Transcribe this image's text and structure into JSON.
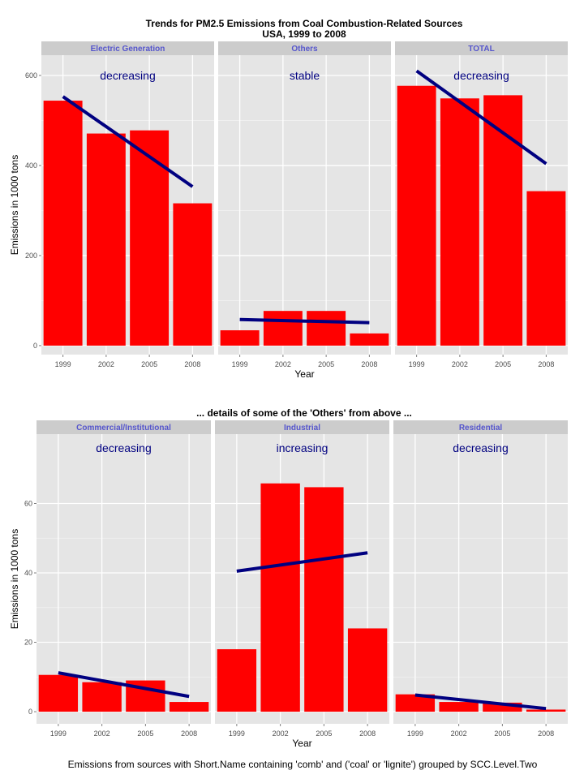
{
  "caption": "Emissions from sources with Short.Name containing 'comb' and ('coal' or 'lignite') grouped by SCC.Level.Two",
  "colors": {
    "bar": "#ff0000",
    "trend": "#000080",
    "panel_bg": "#e5e5e5",
    "strip_bg": "#cccccc",
    "strip_text": "#5555cc",
    "grid": "#ffffff"
  },
  "chart_data": [
    {
      "type": "bar",
      "title": "Trends for PM2.5 Emissions from Coal Combustion-Related Sources",
      "subtitle": "USA, 1999 to 2008",
      "xlabel": "Year",
      "ylabel": "Emissions in 1000 tons",
      "ylim": [
        -20,
        645
      ],
      "yticks": [
        0,
        200,
        400,
        600
      ],
      "categories": [
        "1999",
        "2002",
        "2005",
        "2008"
      ],
      "grid": true,
      "panels": [
        {
          "name": "Electric Generation",
          "values": [
            544,
            471,
            478,
            316
          ],
          "trend": {
            "label": "decreasing",
            "start": 553,
            "end": 353
          }
        },
        {
          "name": "Others",
          "values": [
            34,
            77,
            77,
            27
          ],
          "trend": {
            "label": "stable",
            "start": 58,
            "end": 51
          }
        },
        {
          "name": "TOTAL",
          "values": [
            577,
            549,
            556,
            343
          ],
          "trend": {
            "label": "decreasing",
            "start": 610,
            "end": 404
          }
        }
      ]
    },
    {
      "type": "bar",
      "title": "... details of some of the 'Others' from above ...",
      "xlabel": "Year",
      "ylabel": "Emissions in 1000 tons",
      "ylim": [
        -3.5,
        80
      ],
      "yticks": [
        0,
        20,
        40,
        60
      ],
      "categories": [
        "1999",
        "2002",
        "2005",
        "2008"
      ],
      "grid": true,
      "panels": [
        {
          "name": "Commercial/Institutional",
          "values": [
            10.6,
            8.5,
            9.0,
            2.8
          ],
          "trend": {
            "label": "decreasing",
            "start": 11.2,
            "end": 4.4
          }
        },
        {
          "name": "Industrial",
          "values": [
            18.0,
            65.8,
            64.7,
            24.0
          ],
          "trend": {
            "label": "increasing",
            "start": 40.5,
            "end": 45.8
          }
        },
        {
          "name": "Residential",
          "values": [
            5.0,
            2.8,
            2.6,
            0.6
          ],
          "trend": {
            "label": "decreasing",
            "start": 4.8,
            "end": 0.9
          }
        }
      ]
    }
  ]
}
